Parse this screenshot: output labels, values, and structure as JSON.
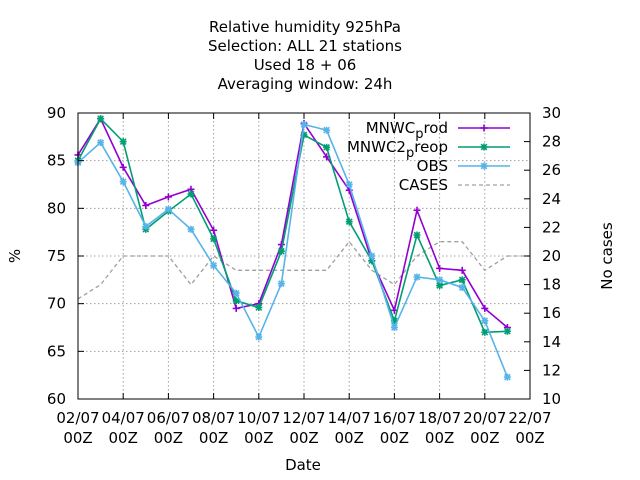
{
  "chart_data": {
    "type": "line",
    "title_lines": [
      "Relative humidity 925hPa",
      "Selection: ALL      21 stations",
      "Used  18 + 06",
      "Averaging window: 24h"
    ],
    "xlabel": "Date",
    "ylabel": "%",
    "y2label": "No cases",
    "ylim": [
      60,
      90
    ],
    "y2lim": [
      10,
      30
    ],
    "xlim": [
      0,
      20
    ],
    "yticks": [
      "60",
      "65",
      "70",
      "75",
      "80",
      "85",
      "90"
    ],
    "y2ticks": [
      "10",
      "12",
      "14",
      "16",
      "18",
      "20",
      "22",
      "24",
      "26",
      "28",
      "30"
    ],
    "xticks_top": [
      "02/07",
      "04/07",
      "06/07",
      "08/07",
      "10/07",
      "12/07",
      "14/07",
      "16/07",
      "18/07",
      "20/07",
      "22/07"
    ],
    "xticks_bottom": [
      "00Z",
      "00Z",
      "00Z",
      "00Z",
      "00Z",
      "00Z",
      "00Z",
      "00Z",
      "00Z",
      "00Z",
      "00Z"
    ],
    "grid": true,
    "legend_position": "top-right",
    "series": [
      {
        "name": "MNWC_prod",
        "legend_main": "MNWC",
        "legend_sub": "p",
        "legend_rest": "rod",
        "color": "#9400d3",
        "marker": "plus",
        "axis": "left",
        "x": [
          0,
          1,
          2,
          3,
          4,
          5,
          6,
          7,
          8,
          9,
          10,
          11,
          12,
          13,
          14,
          15,
          16,
          17,
          18,
          19
        ],
        "values": [
          85.6,
          89.4,
          84.3,
          80.3,
          81.2,
          82.0,
          77.7,
          69.5,
          70.0,
          76.2,
          88.9,
          85.4,
          81.9,
          74.5,
          69.3,
          79.8,
          73.7,
          73.5,
          69.5,
          67.5
        ]
      },
      {
        "name": "MNWC2_preop",
        "legend_main": "MNWC2",
        "legend_sub": "p",
        "legend_rest": "reop",
        "color": "#009e73",
        "marker": "star",
        "axis": "left",
        "x": [
          0,
          1,
          2,
          3,
          4,
          5,
          6,
          7,
          8,
          9,
          10,
          11,
          12,
          13,
          14,
          15,
          16,
          17,
          18,
          19
        ],
        "values": [
          85.0,
          89.4,
          87.0,
          77.8,
          79.7,
          81.5,
          76.8,
          70.3,
          69.6,
          75.5,
          87.7,
          86.4,
          78.6,
          74.5,
          68.2,
          77.2,
          71.9,
          72.5,
          67.0,
          67.1
        ]
      },
      {
        "name": "OBS",
        "legend_main": "OBS",
        "legend_sub": "",
        "legend_rest": "",
        "color": "#56b4e9",
        "marker": "star",
        "axis": "left",
        "x": [
          0,
          1,
          2,
          3,
          4,
          5,
          6,
          7,
          8,
          9,
          10,
          11,
          12,
          13,
          14,
          15,
          16,
          17,
          18,
          19
        ],
        "values": [
          84.8,
          86.9,
          82.8,
          78.1,
          79.9,
          77.8,
          74.0,
          71.1,
          66.5,
          72.1,
          88.8,
          88.2,
          82.5,
          75.0,
          67.5,
          72.8,
          72.5,
          71.7,
          68.2,
          62.3
        ]
      },
      {
        "name": "CASES",
        "legend_main": "CASES",
        "legend_sub": "",
        "legend_rest": "",
        "color": "#a0a0a0",
        "marker": "none",
        "dashed": true,
        "axis": "right",
        "x": [
          0,
          1,
          2,
          3,
          4,
          5,
          6,
          7,
          8,
          9,
          10,
          11,
          12,
          13,
          14,
          15,
          16,
          17,
          18,
          19,
          20
        ],
        "values": [
          17,
          18,
          20,
          20,
          20,
          18,
          20,
          19,
          19,
          19,
          19,
          19,
          21,
          19,
          18,
          20,
          21,
          21,
          19,
          20,
          20
        ]
      }
    ]
  }
}
